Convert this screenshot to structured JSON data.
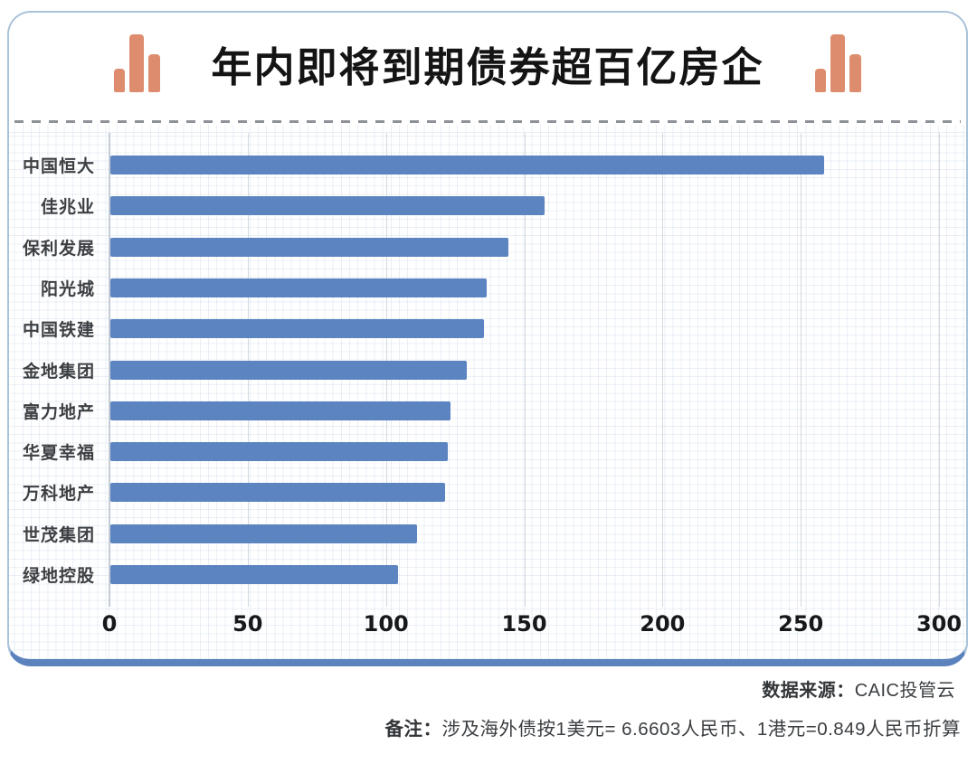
{
  "header": {
    "title": "年内即将到期债券超百亿房企",
    "icon": "bar-chart-icon",
    "icon_color": "#dd8d6e",
    "title_color": "#141414"
  },
  "chart_data": {
    "type": "bar",
    "orientation": "horizontal",
    "title": "年内即将到期债券超百亿房企",
    "categories": [
      "中国恒大",
      "佳兆业",
      "保利发展",
      "阳光城",
      "中国铁建",
      "金地集团",
      "富力地产",
      "华夏幸福",
      "万科地产",
      "世茂集团",
      "绿地控股"
    ],
    "values": [
      258,
      157,
      144,
      136,
      135,
      129,
      123,
      122,
      121,
      111,
      104
    ],
    "xlim": [
      0,
      300
    ],
    "x_ticks": [
      0,
      50,
      100,
      150,
      200,
      250,
      300
    ],
    "grid": true,
    "legend": false,
    "bar_color": "#5b84c1",
    "xlabel": "",
    "ylabel": ""
  },
  "footer": {
    "source_label": "数据来源：",
    "source_value": "CAIC投管云",
    "note_label": "备注：",
    "note_value": "涉及海外债按1美元= 6.6603人民币、1港元=0.849人民币折算"
  },
  "colors": {
    "bar_blue": "#5b84c1",
    "card_border": "#aac3d9",
    "card_bottom_line": "#5b82bd",
    "icon_salmon": "#dd8d6e",
    "dashed_separator": "#8e9298",
    "gridline_major": "#d3d9e0",
    "axis_line": "#c2ccd6",
    "footer_text": "#3b3e41"
  }
}
